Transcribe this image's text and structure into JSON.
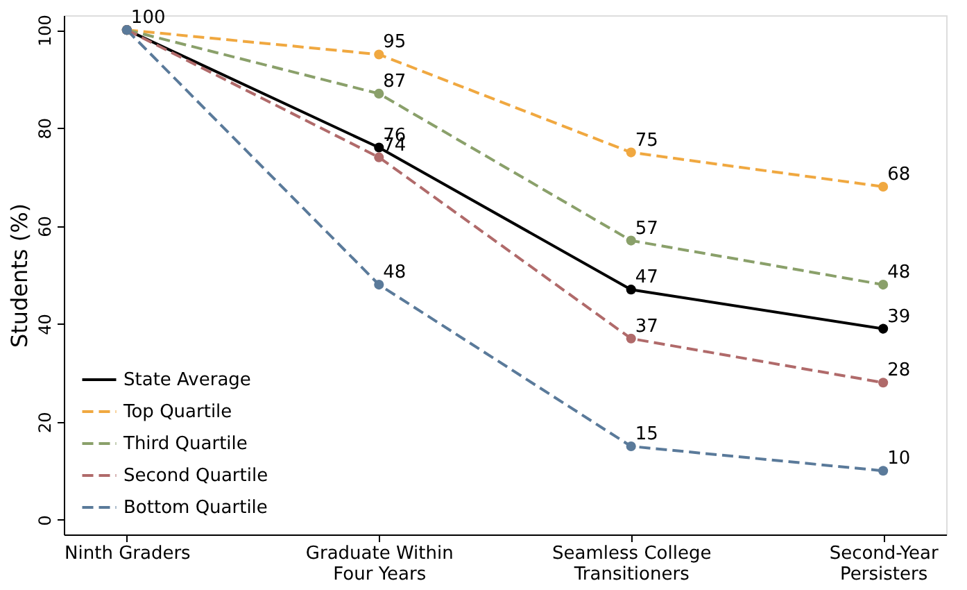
{
  "chart_data": {
    "type": "line",
    "ylabel": "Students (%)",
    "categories": [
      "Ninth Graders",
      "Graduate Within\nFour Years",
      "Seamless College\nTransitioners",
      "Second-Year\nPersisters"
    ],
    "series": [
      {
        "name": "State Average",
        "color": "#000000",
        "line_style": "solid",
        "values": [
          100,
          76,
          47,
          39
        ],
        "value_labels": [
          "100",
          "76",
          "47",
          "39"
        ]
      },
      {
        "name": "Top Quartile",
        "color": "#f0a840",
        "line_style": "dashed",
        "values": [
          100,
          95,
          75,
          68
        ],
        "value_labels": [
          null,
          "95",
          "75",
          "68"
        ]
      },
      {
        "name": "Third Quartile",
        "color": "#8aa06a",
        "line_style": "dashed",
        "values": [
          100,
          87,
          57,
          48
        ],
        "value_labels": [
          null,
          "87",
          "57",
          "48"
        ]
      },
      {
        "name": "Second Quartile",
        "color": "#b06a6a",
        "line_style": "dashed",
        "values": [
          100,
          74,
          37,
          28
        ],
        "value_labels": [
          null,
          "74",
          "37",
          "28"
        ]
      },
      {
        "name": "Bottom Quartile",
        "color": "#5a7a9a",
        "line_style": "dashed",
        "values": [
          100,
          48,
          15,
          10
        ],
        "value_labels": [
          null,
          "48",
          "15",
          "10"
        ]
      }
    ],
    "ylim": [
      -3,
      103
    ],
    "yticks": [
      0,
      20,
      40,
      60,
      80,
      100
    ],
    "grid": false,
    "legend": "bottom left",
    "marker": "circle"
  }
}
